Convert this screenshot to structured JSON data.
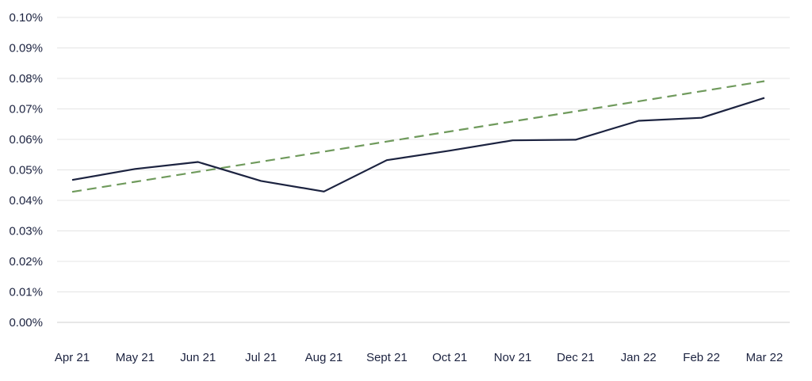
{
  "chart_data": {
    "type": "line",
    "title": "",
    "xlabel": "",
    "ylabel": "",
    "categories": [
      "Apr 21",
      "May 21",
      "Jun 21",
      "Jul 21",
      "Aug 21",
      "Sept 21",
      "Oct 21",
      "Nov 21",
      "Dec 21",
      "Jan 22",
      "Feb 22",
      "Mar 22"
    ],
    "y_ticks": [
      "0.00%",
      "0.01%",
      "0.02%",
      "0.03%",
      "0.04%",
      "0.05%",
      "0.06%",
      "0.07%",
      "0.08%",
      "0.09%",
      "0.10%"
    ],
    "ylim": [
      0,
      0.1
    ],
    "grid": true,
    "legend": "none",
    "series": [
      {
        "style": "solid",
        "color": "#1c2340",
        "values": [
          0.0467,
          0.0503,
          0.0526,
          0.0464,
          0.0429,
          0.0532,
          0.0563,
          0.0597,
          0.0599,
          0.0661,
          0.0671,
          0.0736
        ]
      },
      {
        "style": "dashed",
        "color": "#6f9a5c",
        "values": [
          0.0428,
          0.0461,
          0.0494,
          0.0527,
          0.056,
          0.0593,
          0.0626,
          0.0659,
          0.0692,
          0.0725,
          0.0758,
          0.0791
        ]
      }
    ]
  }
}
